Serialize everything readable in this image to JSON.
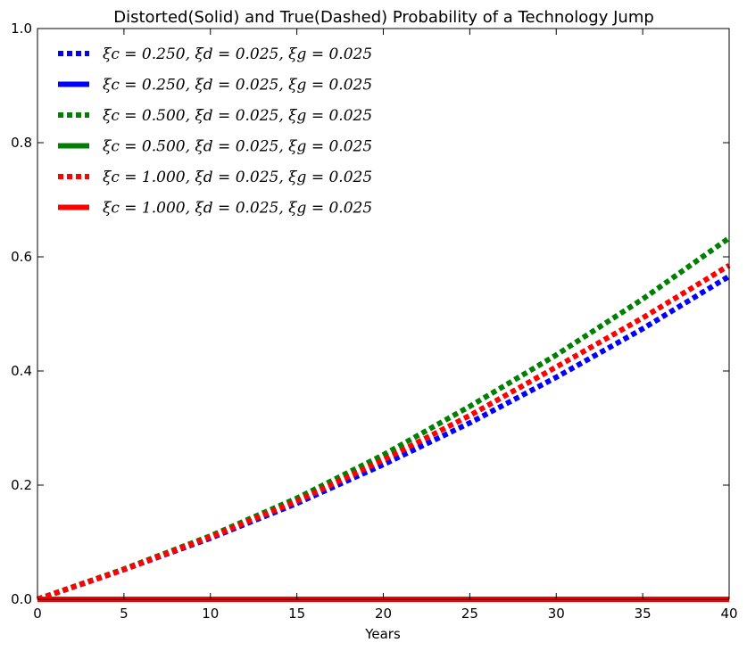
{
  "chart_data": {
    "type": "line",
    "title": "Distorted(Solid) and True(Dashed) Probability of a Technology Jump",
    "xlabel": "Years",
    "ylabel": "",
    "xlim": [
      0,
      40
    ],
    "ylim": [
      0,
      1.0
    ],
    "xticks": [
      "0",
      "5",
      "10",
      "15",
      "20",
      "25",
      "30",
      "35",
      "40"
    ],
    "yticks": [
      "0.0",
      "0.2",
      "0.4",
      "0.6",
      "0.8",
      "1.0"
    ],
    "grid": false,
    "legend_position": "top-left",
    "x": [
      0,
      5,
      10,
      15,
      20,
      25,
      30,
      35,
      40
    ],
    "series": [
      {
        "name": "ξc = 0.250, ξd = 0.025, ξg = 0.025",
        "style": "dashed",
        "color": "#0000ff",
        "values": [
          0,
          0.052,
          0.107,
          0.168,
          0.236,
          0.309,
          0.389,
          0.474,
          0.566
        ]
      },
      {
        "name": "ξc = 0.250, ξd = 0.025, ξg = 0.025",
        "style": "solid",
        "color": "#0000ff",
        "values": [
          0,
          0,
          0,
          0,
          0,
          0,
          0,
          0,
          0
        ]
      },
      {
        "name": "ξc = 0.500, ξd = 0.025, ξg = 0.025",
        "style": "dashed",
        "color": "#008000",
        "values": [
          0,
          0.053,
          0.111,
          0.177,
          0.253,
          0.338,
          0.428,
          0.526,
          0.633
        ]
      },
      {
        "name": "ξc = 0.500, ξd = 0.025, ξg = 0.025",
        "style": "solid",
        "color": "#008000",
        "values": [
          0,
          0,
          0,
          0,
          0,
          0,
          0,
          0,
          0
        ]
      },
      {
        "name": "ξc = 1.000, ξd = 0.025, ξg = 0.025",
        "style": "dashed",
        "color": "#ff0000",
        "values": [
          0,
          0.052,
          0.109,
          0.172,
          0.244,
          0.322,
          0.407,
          0.493,
          0.585
        ]
      },
      {
        "name": "ξc = 1.000, ξd = 0.025, ξg = 0.025",
        "style": "solid",
        "color": "#ff0000",
        "values": [
          0,
          0,
          0,
          0,
          0,
          0,
          0,
          0,
          0
        ]
      }
    ]
  }
}
